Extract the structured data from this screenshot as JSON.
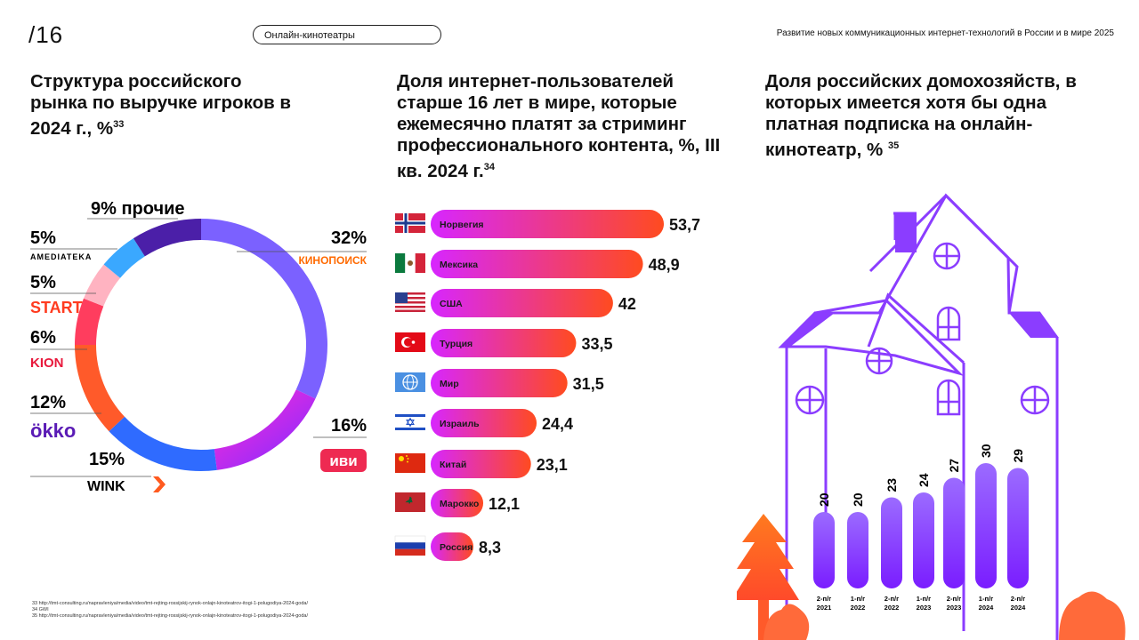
{
  "header": {
    "page_number": "/16",
    "section": "Онлайн-кинотеатры",
    "report_title": "Развитие новых коммуникационных интернет-технологий в России и в мире 2025"
  },
  "blocks": {
    "market": {
      "title": "Структура российского рынка по выручке игроков в 2024 г., %",
      "ref": "33"
    },
    "streaming": {
      "title": "Доля интернет-пользователей старше 16 лет в мире, которые ежемесячно платят за стриминг профессионального контента, %, III кв. 2024 г.",
      "ref": "34"
    },
    "households": {
      "title": "Доля российских домохозяйств, в которых имеется хотя бы одна платная подписка на онлайн-кинотеатр, %",
      "ref": "35"
    }
  },
  "chart_data": [
    {
      "type": "pie",
      "donut": true,
      "title": "Структура российского рынка по выручке игроков в 2024 г., %",
      "slices": [
        {
          "label": "Кинопоиск",
          "value": 32,
          "value_label": "32%",
          "color": "#7b61ff"
        },
        {
          "label": "Иви",
          "value": 16,
          "value_label": "16%",
          "color": "#b026ff"
        },
        {
          "label": "Wink",
          "value": 15,
          "value_label": "15%",
          "color": "#2f6bff"
        },
        {
          "label": "Okko",
          "value": 12,
          "value_label": "12%",
          "color": "#ff5a2a"
        },
        {
          "label": "Kion",
          "value": 6,
          "value_label": "6%",
          "color": "#ff3d5e"
        },
        {
          "label": "Start",
          "value": 5,
          "value_label": "5%",
          "color": "#ffb3c1"
        },
        {
          "label": "Amediateka",
          "value": 5,
          "value_label": "5%",
          "color": "#3aa8ff"
        },
        {
          "label": "прочие",
          "value": 9,
          "value_label": "9% прочие",
          "color": "#4b1fa8"
        }
      ],
      "brand_labels": {
        "kinopoisk": "КИНОПОИСК",
        "ivi": "иви",
        "wink": "WINK",
        "okko": "ökko",
        "kion": "KION",
        "start": "START",
        "amediateka": "AMEDIATEKA"
      }
    },
    {
      "type": "bar",
      "orientation": "horizontal",
      "title": "Доля интернет-пользователей старше 16 лет в мире, которые ежемесячно платят за стриминг профессионального контента, %, III кв. 2024 г.",
      "categories": [
        "Норвегия",
        "Мексика",
        "США",
        "Турция",
        "Мир",
        "Израиль",
        "Китай",
        "Марокко",
        "Россия"
      ],
      "values": [
        53.7,
        48.9,
        42,
        33.5,
        31.5,
        24.4,
        23.1,
        12.1,
        8.3
      ],
      "value_labels": [
        "53,7",
        "48,9",
        "42",
        "33,5",
        "31,5",
        "24,4",
        "23,1",
        "12,1",
        "8,3"
      ],
      "colors": {
        "start": "#d726ff",
        "end": "#ff4b1f"
      }
    },
    {
      "type": "bar",
      "orientation": "vertical",
      "title": "Доля российских домохозяйств, в которых имеется хотя бы одна платная подписка на онлайн-кинотеатр, %",
      "categories": [
        "2-п/г 2021",
        "1-п/г 2022",
        "2-п/г 2022",
        "1-п/г 2023",
        "2-п/г 2023",
        "1-п/г 2024",
        "2-п/г 2024"
      ],
      "category_lines": [
        [
          "2-п/г",
          "2021"
        ],
        [
          "1-п/г",
          "2022"
        ],
        [
          "2-п/г",
          "2022"
        ],
        [
          "1-п/г",
          "2023"
        ],
        [
          "2-п/г",
          "2023"
        ],
        [
          "1-п/г",
          "2024"
        ],
        [
          "2-п/г",
          "2024"
        ]
      ],
      "values": [
        20,
        20,
        23,
        24,
        27,
        30,
        29
      ],
      "colors": {
        "top": "#9b6bff",
        "bottom": "#7a1dff"
      }
    }
  ],
  "footnotes": [
    "33 http://tmt-consulting.ru/napravleniya/media/video/tmt-rejting-rossijskij-rynok-onlajn-kinoteatrov-itogi-1-polugodiya-2024-goda/",
    "34 GWI",
    "35 http://tmt-consulting.ru/napravleniya/media/video/tmt-rejting-rossijskij-rynok-onlajn-kinoteatrov-itogi-1-polugodiya-2024-goda/"
  ]
}
